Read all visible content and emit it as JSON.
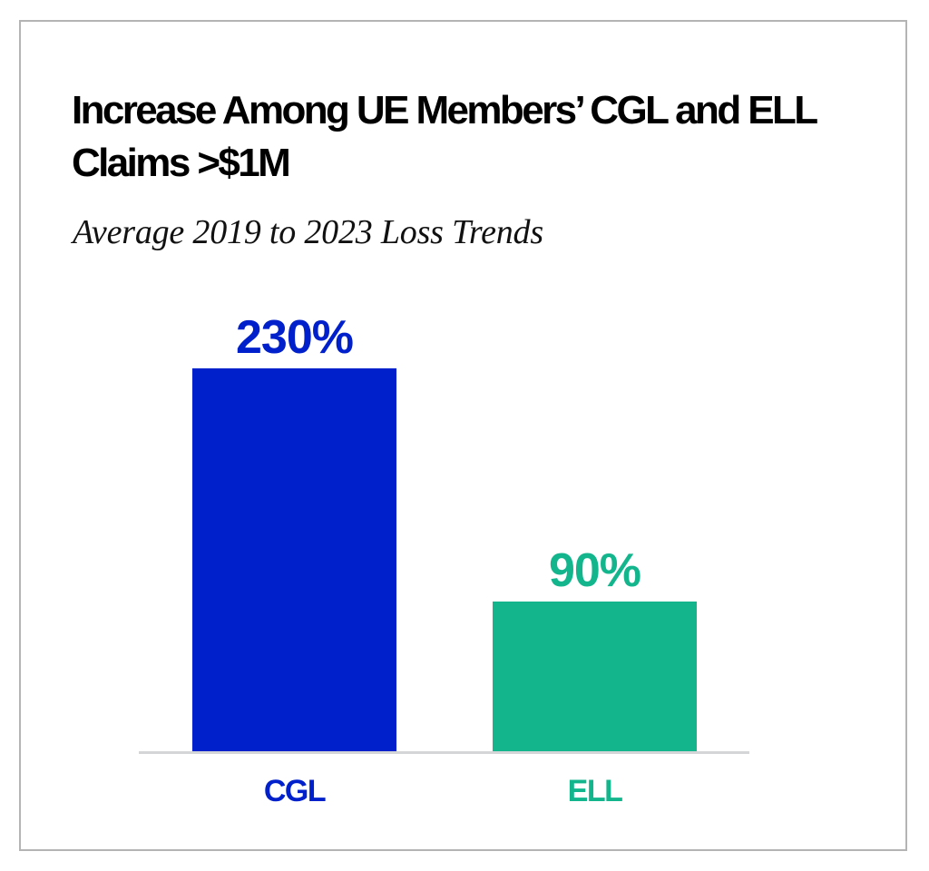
{
  "title": "Increase Among UE Members’ CGL and ELL Claims >$1M",
  "subtitle": "Average 2019 to 2023 Loss Trends",
  "colors": {
    "cgl": "#0020cc",
    "ell": "#12b58c",
    "baseline": "#d4d5d7",
    "frame": "#b4b4b4"
  },
  "bars": [
    {
      "category": "CGL",
      "value": 230,
      "value_label": "230%",
      "color": "#0020cc"
    },
    {
      "category": "ELL",
      "value": 90,
      "value_label": "90%",
      "color": "#12b58c"
    }
  ],
  "chart_data": {
    "type": "bar",
    "title": "Increase Among UE Members’ CGL and ELL Claims >$1M",
    "subtitle": "Average 2019 to 2023 Loss Trends",
    "categories": [
      "CGL",
      "ELL"
    ],
    "values": [
      230,
      90
    ],
    "value_labels": [
      "230%",
      "90%"
    ],
    "unit": "%",
    "xlabel": "",
    "ylabel": "",
    "ylim": [
      0,
      230
    ],
    "grid": false,
    "legend": null,
    "bar_colors": [
      "#0020cc",
      "#12b58c"
    ]
  }
}
